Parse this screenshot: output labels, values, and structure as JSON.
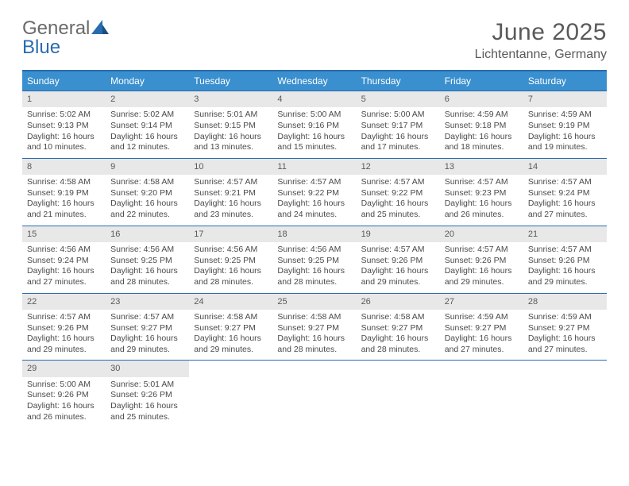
{
  "brand": {
    "part1": "General",
    "part2": "Blue"
  },
  "title": "June 2025",
  "location": "Lichtentanne, Germany",
  "colors": {
    "header_bg": "#3a8fce",
    "rule": "#2a6bb0",
    "daynum_bg": "#e8e8e8",
    "text": "#4a4a4a",
    "title_text": "#5a5a5a"
  },
  "weekdays": [
    "Sunday",
    "Monday",
    "Tuesday",
    "Wednesday",
    "Thursday",
    "Friday",
    "Saturday"
  ],
  "days": [
    {
      "n": "1",
      "sr": "Sunrise: 5:02 AM",
      "ss": "Sunset: 9:13 PM",
      "d1": "Daylight: 16 hours",
      "d2": "and 10 minutes."
    },
    {
      "n": "2",
      "sr": "Sunrise: 5:02 AM",
      "ss": "Sunset: 9:14 PM",
      "d1": "Daylight: 16 hours",
      "d2": "and 12 minutes."
    },
    {
      "n": "3",
      "sr": "Sunrise: 5:01 AM",
      "ss": "Sunset: 9:15 PM",
      "d1": "Daylight: 16 hours",
      "d2": "and 13 minutes."
    },
    {
      "n": "4",
      "sr": "Sunrise: 5:00 AM",
      "ss": "Sunset: 9:16 PM",
      "d1": "Daylight: 16 hours",
      "d2": "and 15 minutes."
    },
    {
      "n": "5",
      "sr": "Sunrise: 5:00 AM",
      "ss": "Sunset: 9:17 PM",
      "d1": "Daylight: 16 hours",
      "d2": "and 17 minutes."
    },
    {
      "n": "6",
      "sr": "Sunrise: 4:59 AM",
      "ss": "Sunset: 9:18 PM",
      "d1": "Daylight: 16 hours",
      "d2": "and 18 minutes."
    },
    {
      "n": "7",
      "sr": "Sunrise: 4:59 AM",
      "ss": "Sunset: 9:19 PM",
      "d1": "Daylight: 16 hours",
      "d2": "and 19 minutes."
    },
    {
      "n": "8",
      "sr": "Sunrise: 4:58 AM",
      "ss": "Sunset: 9:19 PM",
      "d1": "Daylight: 16 hours",
      "d2": "and 21 minutes."
    },
    {
      "n": "9",
      "sr": "Sunrise: 4:58 AM",
      "ss": "Sunset: 9:20 PM",
      "d1": "Daylight: 16 hours",
      "d2": "and 22 minutes."
    },
    {
      "n": "10",
      "sr": "Sunrise: 4:57 AM",
      "ss": "Sunset: 9:21 PM",
      "d1": "Daylight: 16 hours",
      "d2": "and 23 minutes."
    },
    {
      "n": "11",
      "sr": "Sunrise: 4:57 AM",
      "ss": "Sunset: 9:22 PM",
      "d1": "Daylight: 16 hours",
      "d2": "and 24 minutes."
    },
    {
      "n": "12",
      "sr": "Sunrise: 4:57 AM",
      "ss": "Sunset: 9:22 PM",
      "d1": "Daylight: 16 hours",
      "d2": "and 25 minutes."
    },
    {
      "n": "13",
      "sr": "Sunrise: 4:57 AM",
      "ss": "Sunset: 9:23 PM",
      "d1": "Daylight: 16 hours",
      "d2": "and 26 minutes."
    },
    {
      "n": "14",
      "sr": "Sunrise: 4:57 AM",
      "ss": "Sunset: 9:24 PM",
      "d1": "Daylight: 16 hours",
      "d2": "and 27 minutes."
    },
    {
      "n": "15",
      "sr": "Sunrise: 4:56 AM",
      "ss": "Sunset: 9:24 PM",
      "d1": "Daylight: 16 hours",
      "d2": "and 27 minutes."
    },
    {
      "n": "16",
      "sr": "Sunrise: 4:56 AM",
      "ss": "Sunset: 9:25 PM",
      "d1": "Daylight: 16 hours",
      "d2": "and 28 minutes."
    },
    {
      "n": "17",
      "sr": "Sunrise: 4:56 AM",
      "ss": "Sunset: 9:25 PM",
      "d1": "Daylight: 16 hours",
      "d2": "and 28 minutes."
    },
    {
      "n": "18",
      "sr": "Sunrise: 4:56 AM",
      "ss": "Sunset: 9:25 PM",
      "d1": "Daylight: 16 hours",
      "d2": "and 28 minutes."
    },
    {
      "n": "19",
      "sr": "Sunrise: 4:57 AM",
      "ss": "Sunset: 9:26 PM",
      "d1": "Daylight: 16 hours",
      "d2": "and 29 minutes."
    },
    {
      "n": "20",
      "sr": "Sunrise: 4:57 AM",
      "ss": "Sunset: 9:26 PM",
      "d1": "Daylight: 16 hours",
      "d2": "and 29 minutes."
    },
    {
      "n": "21",
      "sr": "Sunrise: 4:57 AM",
      "ss": "Sunset: 9:26 PM",
      "d1": "Daylight: 16 hours",
      "d2": "and 29 minutes."
    },
    {
      "n": "22",
      "sr": "Sunrise: 4:57 AM",
      "ss": "Sunset: 9:26 PM",
      "d1": "Daylight: 16 hours",
      "d2": "and 29 minutes."
    },
    {
      "n": "23",
      "sr": "Sunrise: 4:57 AM",
      "ss": "Sunset: 9:27 PM",
      "d1": "Daylight: 16 hours",
      "d2": "and 29 minutes."
    },
    {
      "n": "24",
      "sr": "Sunrise: 4:58 AM",
      "ss": "Sunset: 9:27 PM",
      "d1": "Daylight: 16 hours",
      "d2": "and 29 minutes."
    },
    {
      "n": "25",
      "sr": "Sunrise: 4:58 AM",
      "ss": "Sunset: 9:27 PM",
      "d1": "Daylight: 16 hours",
      "d2": "and 28 minutes."
    },
    {
      "n": "26",
      "sr": "Sunrise: 4:58 AM",
      "ss": "Sunset: 9:27 PM",
      "d1": "Daylight: 16 hours",
      "d2": "and 28 minutes."
    },
    {
      "n": "27",
      "sr": "Sunrise: 4:59 AM",
      "ss": "Sunset: 9:27 PM",
      "d1": "Daylight: 16 hours",
      "d2": "and 27 minutes."
    },
    {
      "n": "28",
      "sr": "Sunrise: 4:59 AM",
      "ss": "Sunset: 9:27 PM",
      "d1": "Daylight: 16 hours",
      "d2": "and 27 minutes."
    },
    {
      "n": "29",
      "sr": "Sunrise: 5:00 AM",
      "ss": "Sunset: 9:26 PM",
      "d1": "Daylight: 16 hours",
      "d2": "and 26 minutes."
    },
    {
      "n": "30",
      "sr": "Sunrise: 5:01 AM",
      "ss": "Sunset: 9:26 PM",
      "d1": "Daylight: 16 hours",
      "d2": "and 25 minutes."
    }
  ]
}
